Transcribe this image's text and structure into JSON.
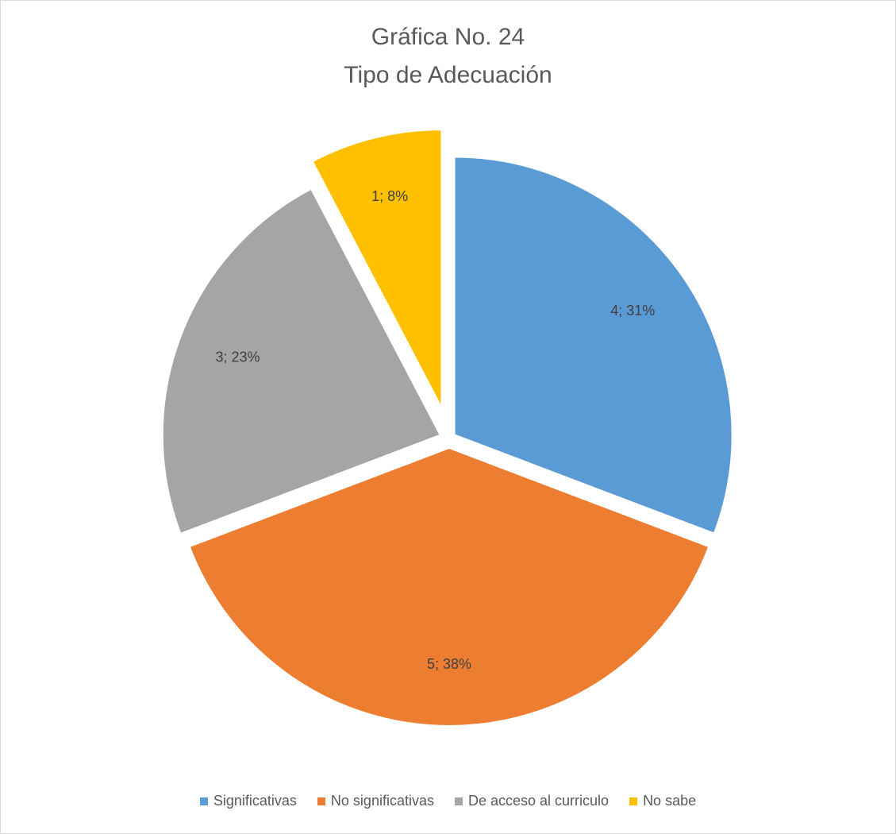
{
  "chart_data": {
    "type": "pie",
    "title": "Gráfica No. 24",
    "subtitle": "Tipo de Adecuación",
    "categories": [
      "Significativas",
      "No significativas",
      "De acceso al curriculo",
      "No sabe"
    ],
    "values": [
      4,
      5,
      3,
      1
    ],
    "data_labels": [
      "4; 31%",
      "5; 38%",
      "3; 23%",
      "1; 8%"
    ],
    "colors": [
      "#5b9bd5",
      "#ed7d31",
      "#a5a5a5",
      "#ffc000"
    ],
    "exploded": true,
    "legend_position": "bottom"
  }
}
